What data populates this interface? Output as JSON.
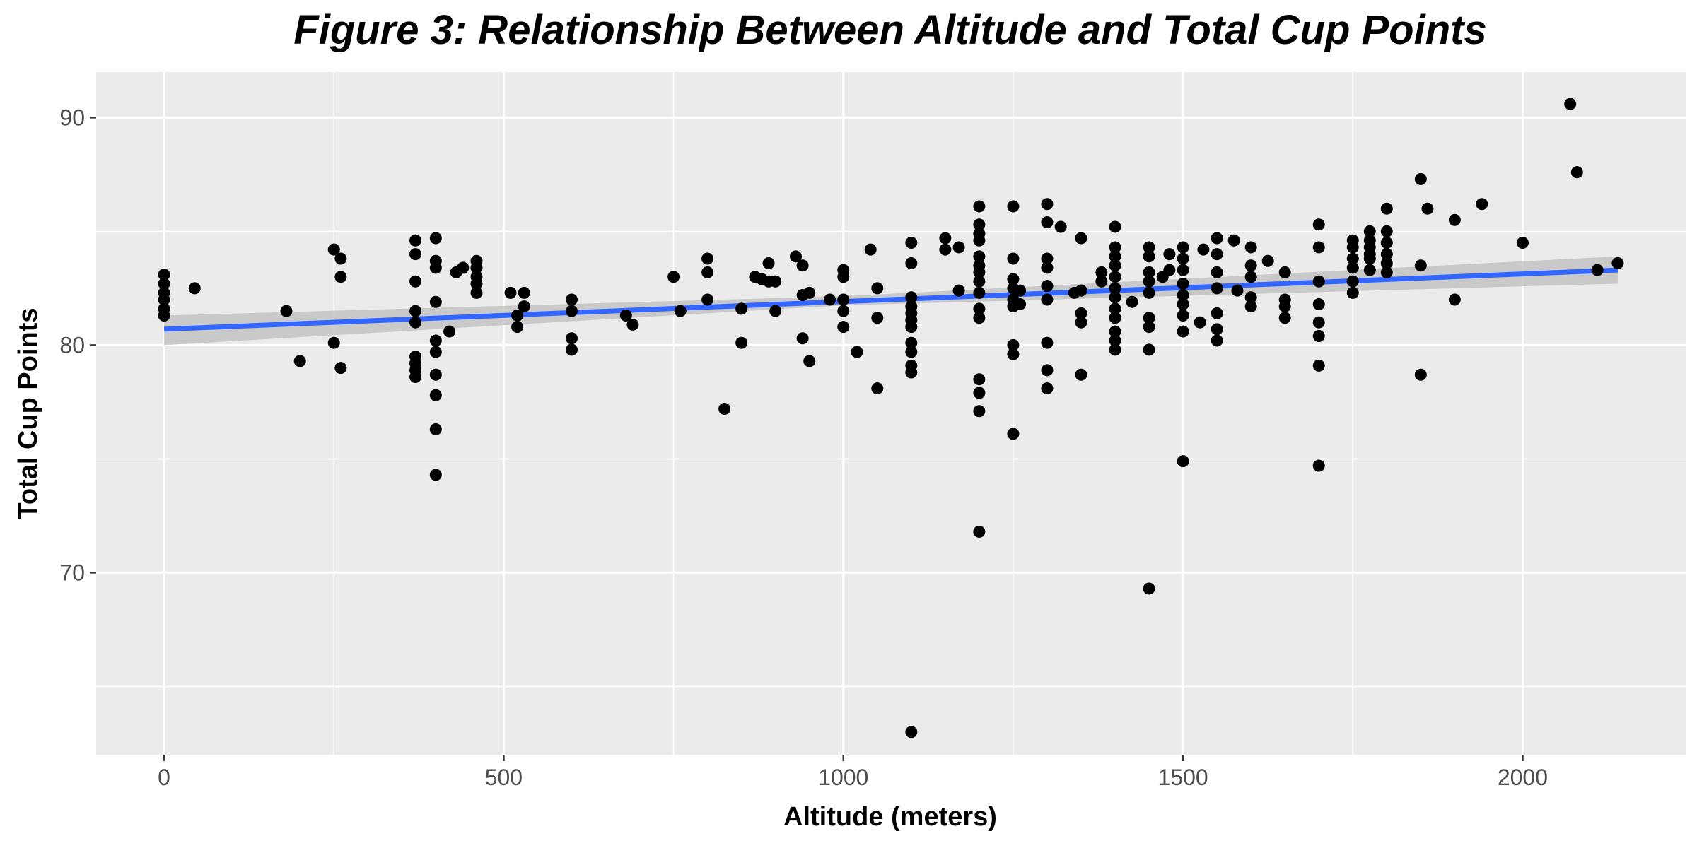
{
  "chart_data": {
    "type": "scatter",
    "title": "Figure 3: Relationship Between Altitude and Total Cup Points",
    "xlabel": "Altitude (meters)",
    "ylabel": "Total Cup Points",
    "xlim": [
      -100,
      2240
    ],
    "ylim": [
      62,
      92
    ],
    "x_ticks": [
      0,
      500,
      1000,
      1500,
      2000
    ],
    "x_tick_labels": [
      "0",
      "500",
      "1000",
      "1500",
      "2000"
    ],
    "y_ticks": [
      70,
      80,
      90
    ],
    "y_tick_labels": [
      "70",
      "80",
      "90"
    ],
    "x_minor_gridlines": [
      250,
      750,
      1250,
      1750
    ],
    "y_minor_gridlines": [
      65,
      75,
      85
    ],
    "grid": true,
    "panel_background": "#ebebeb",
    "gridline_color": "#ffffff",
    "point_color": "#000000",
    "fit_line_color": "#3366ff",
    "confidence_band_color": "#bdbdbd",
    "fit_line": {
      "method": "linear",
      "x": [
        0,
        2140
      ],
      "y": [
        80.7,
        83.3
      ]
    },
    "confidence_band": {
      "x": [
        0,
        1000,
        2140
      ],
      "lower": [
        80.0,
        81.75,
        82.7
      ],
      "upper": [
        81.3,
        82.15,
        83.9
      ]
    },
    "points": [
      [
        0,
        83.1
      ],
      [
        0,
        82.7
      ],
      [
        0,
        82.3
      ],
      [
        0,
        82.0
      ],
      [
        0,
        81.6
      ],
      [
        0,
        81.3
      ],
      [
        45,
        82.5
      ],
      [
        180,
        81.5
      ],
      [
        200,
        79.3
      ],
      [
        250,
        84.2
      ],
      [
        250,
        80.1
      ],
      [
        260,
        83.8
      ],
      [
        260,
        83.0
      ],
      [
        260,
        79.0
      ],
      [
        370,
        84.6
      ],
      [
        370,
        84.0
      ],
      [
        370,
        82.8
      ],
      [
        370,
        81.5
      ],
      [
        370,
        81.0
      ],
      [
        370,
        79.5
      ],
      [
        370,
        79.2
      ],
      [
        370,
        78.9
      ],
      [
        370,
        78.6
      ],
      [
        400,
        84.7
      ],
      [
        400,
        83.7
      ],
      [
        400,
        83.4
      ],
      [
        400,
        81.9
      ],
      [
        400,
        80.2
      ],
      [
        400,
        79.7
      ],
      [
        400,
        78.7
      ],
      [
        400,
        77.8
      ],
      [
        400,
        76.3
      ],
      [
        400,
        74.3
      ],
      [
        420,
        80.6
      ],
      [
        430,
        83.2
      ],
      [
        440,
        83.4
      ],
      [
        460,
        83.7
      ],
      [
        460,
        83.4
      ],
      [
        460,
        83.0
      ],
      [
        460,
        82.7
      ],
      [
        460,
        82.3
      ],
      [
        510,
        82.3
      ],
      [
        520,
        81.3
      ],
      [
        520,
        80.8
      ],
      [
        530,
        82.3
      ],
      [
        530,
        81.7
      ],
      [
        600,
        82.0
      ],
      [
        600,
        81.5
      ],
      [
        600,
        80.3
      ],
      [
        600,
        79.8
      ],
      [
        680,
        81.3
      ],
      [
        690,
        80.9
      ],
      [
        750,
        83.0
      ],
      [
        760,
        81.5
      ],
      [
        800,
        83.8
      ],
      [
        800,
        83.2
      ],
      [
        800,
        82.0
      ],
      [
        825,
        77.2
      ],
      [
        850,
        81.6
      ],
      [
        850,
        80.1
      ],
      [
        870,
        83.0
      ],
      [
        880,
        82.9
      ],
      [
        890,
        83.6
      ],
      [
        890,
        82.8
      ],
      [
        900,
        82.8
      ],
      [
        900,
        81.5
      ],
      [
        930,
        83.9
      ],
      [
        940,
        83.5
      ],
      [
        940,
        82.2
      ],
      [
        940,
        80.3
      ],
      [
        950,
        82.3
      ],
      [
        950,
        79.3
      ],
      [
        980,
        82.0
      ],
      [
        1000,
        83.3
      ],
      [
        1000,
        83.0
      ],
      [
        1000,
        82.0
      ],
      [
        1000,
        81.5
      ],
      [
        1000,
        80.8
      ],
      [
        1020,
        79.7
      ],
      [
        1040,
        84.2
      ],
      [
        1050,
        82.5
      ],
      [
        1050,
        81.2
      ],
      [
        1050,
        78.1
      ],
      [
        1100,
        84.5
      ],
      [
        1100,
        83.6
      ],
      [
        1100,
        82.1
      ],
      [
        1100,
        81.7
      ],
      [
        1100,
        81.4
      ],
      [
        1100,
        81.1
      ],
      [
        1100,
        80.8
      ],
      [
        1100,
        80.1
      ],
      [
        1100,
        79.7
      ],
      [
        1100,
        79.1
      ],
      [
        1100,
        78.8
      ],
      [
        1100,
        63.0
      ],
      [
        1150,
        84.7
      ],
      [
        1150,
        84.2
      ],
      [
        1170,
        82.4
      ],
      [
        1170,
        84.3
      ],
      [
        1200,
        86.1
      ],
      [
        1200,
        85.3
      ],
      [
        1200,
        84.9
      ],
      [
        1200,
        84.6
      ],
      [
        1200,
        83.9
      ],
      [
        1200,
        83.5
      ],
      [
        1200,
        83.2
      ],
      [
        1200,
        82.8
      ],
      [
        1200,
        82.3
      ],
      [
        1200,
        81.6
      ],
      [
        1200,
        81.2
      ],
      [
        1200,
        78.5
      ],
      [
        1200,
        77.9
      ],
      [
        1200,
        77.1
      ],
      [
        1200,
        71.8
      ],
      [
        1250,
        86.1
      ],
      [
        1250,
        83.8
      ],
      [
        1250,
        82.9
      ],
      [
        1250,
        82.5
      ],
      [
        1250,
        82.0
      ],
      [
        1250,
        81.7
      ],
      [
        1250,
        80.0
      ],
      [
        1250,
        79.6
      ],
      [
        1250,
        76.1
      ],
      [
        1260,
        81.8
      ],
      [
        1260,
        82.4
      ],
      [
        1300,
        86.2
      ],
      [
        1300,
        85.4
      ],
      [
        1300,
        83.8
      ],
      [
        1300,
        83.4
      ],
      [
        1300,
        82.6
      ],
      [
        1300,
        82.0
      ],
      [
        1300,
        80.1
      ],
      [
        1300,
        78.9
      ],
      [
        1300,
        78.1
      ],
      [
        1320,
        85.2
      ],
      [
        1340,
        82.3
      ],
      [
        1350,
        84.7
      ],
      [
        1350,
        82.4
      ],
      [
        1350,
        81.4
      ],
      [
        1350,
        81.0
      ],
      [
        1350,
        78.7
      ],
      [
        1380,
        83.2
      ],
      [
        1380,
        82.8
      ],
      [
        1400,
        85.2
      ],
      [
        1400,
        84.3
      ],
      [
        1400,
        83.9
      ],
      [
        1400,
        83.5
      ],
      [
        1400,
        83.0
      ],
      [
        1400,
        82.5
      ],
      [
        1400,
        82.1
      ],
      [
        1400,
        81.6
      ],
      [
        1400,
        81.2
      ],
      [
        1400,
        80.6
      ],
      [
        1400,
        80.2
      ],
      [
        1400,
        79.8
      ],
      [
        1425,
        81.9
      ],
      [
        1450,
        84.3
      ],
      [
        1450,
        83.9
      ],
      [
        1450,
        83.2
      ],
      [
        1450,
        82.8
      ],
      [
        1450,
        82.3
      ],
      [
        1450,
        81.2
      ],
      [
        1450,
        80.8
      ],
      [
        1450,
        79.8
      ],
      [
        1450,
        69.3
      ],
      [
        1470,
        83.0
      ],
      [
        1480,
        84.0
      ],
      [
        1480,
        83.3
      ],
      [
        1500,
        84.3
      ],
      [
        1500,
        83.8
      ],
      [
        1500,
        83.3
      ],
      [
        1500,
        82.7
      ],
      [
        1500,
        82.2
      ],
      [
        1500,
        81.8
      ],
      [
        1500,
        81.3
      ],
      [
        1500,
        80.6
      ],
      [
        1500,
        74.9
      ],
      [
        1525,
        81.0
      ],
      [
        1530,
        84.2
      ],
      [
        1550,
        84.7
      ],
      [
        1550,
        84.0
      ],
      [
        1550,
        83.2
      ],
      [
        1550,
        82.5
      ],
      [
        1550,
        81.4
      ],
      [
        1550,
        80.7
      ],
      [
        1550,
        80.2
      ],
      [
        1575,
        84.6
      ],
      [
        1580,
        82.4
      ],
      [
        1600,
        84.3
      ],
      [
        1600,
        83.5
      ],
      [
        1600,
        83.0
      ],
      [
        1600,
        82.1
      ],
      [
        1600,
        81.7
      ],
      [
        1625,
        83.7
      ],
      [
        1650,
        83.2
      ],
      [
        1650,
        82.0
      ],
      [
        1650,
        81.7
      ],
      [
        1650,
        81.2
      ],
      [
        1700,
        85.3
      ],
      [
        1700,
        84.3
      ],
      [
        1700,
        82.8
      ],
      [
        1700,
        81.8
      ],
      [
        1700,
        81.0
      ],
      [
        1700,
        80.4
      ],
      [
        1700,
        79.1
      ],
      [
        1700,
        74.7
      ],
      [
        1750,
        84.6
      ],
      [
        1750,
        84.3
      ],
      [
        1750,
        83.8
      ],
      [
        1750,
        83.4
      ],
      [
        1750,
        82.8
      ],
      [
        1750,
        82.3
      ],
      [
        1775,
        85.0
      ],
      [
        1775,
        84.6
      ],
      [
        1775,
        84.3
      ],
      [
        1775,
        84.0
      ],
      [
        1775,
        83.8
      ],
      [
        1775,
        83.3
      ],
      [
        1800,
        86.0
      ],
      [
        1800,
        85.0
      ],
      [
        1800,
        84.5
      ],
      [
        1800,
        84.0
      ],
      [
        1800,
        83.6
      ],
      [
        1800,
        83.2
      ],
      [
        1850,
        87.3
      ],
      [
        1850,
        83.5
      ],
      [
        1850,
        78.7
      ],
      [
        1860,
        86.0
      ],
      [
        1900,
        85.5
      ],
      [
        1900,
        82.0
      ],
      [
        1940,
        86.2
      ],
      [
        2000,
        84.5
      ],
      [
        2070,
        90.6
      ],
      [
        2080,
        87.6
      ],
      [
        2110,
        83.3
      ],
      [
        2140,
        83.6
      ]
    ]
  }
}
